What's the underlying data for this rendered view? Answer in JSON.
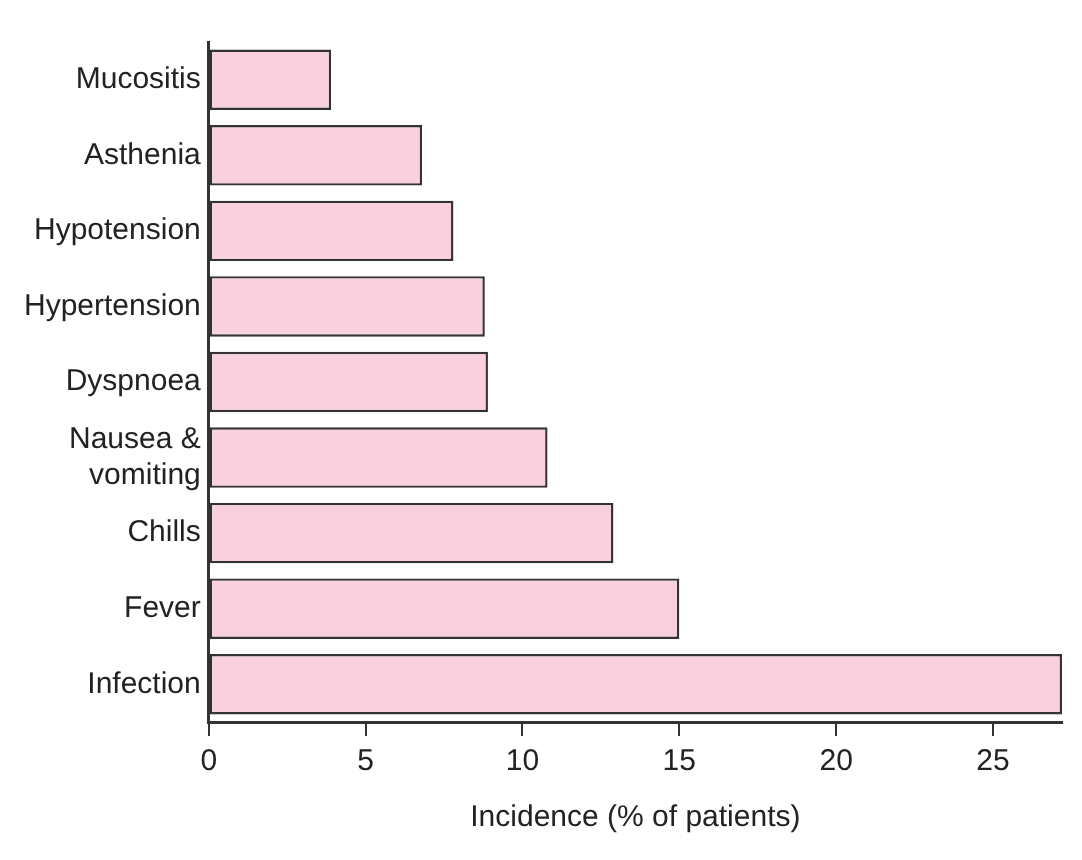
{
  "chart_data": {
    "type": "bar",
    "orientation": "horizontal",
    "xlabel": "Incidence (% of patients)",
    "categories": [
      "Mucositis",
      "Asthenia",
      "Hypotension",
      "Hypertension",
      "Dyspnoea",
      "Nausea & vomiting",
      "Chills",
      "Fever",
      "Infection"
    ],
    "values": [
      3.9,
      6.8,
      7.8,
      8.8,
      8.9,
      10.8,
      12.9,
      15,
      27.2
    ],
    "color": "#f8d0de",
    "xlim": [
      0,
      27.2
    ],
    "xticks": [
      0,
      5,
      10,
      15,
      20,
      25
    ],
    "grid": false,
    "legend": false
  }
}
